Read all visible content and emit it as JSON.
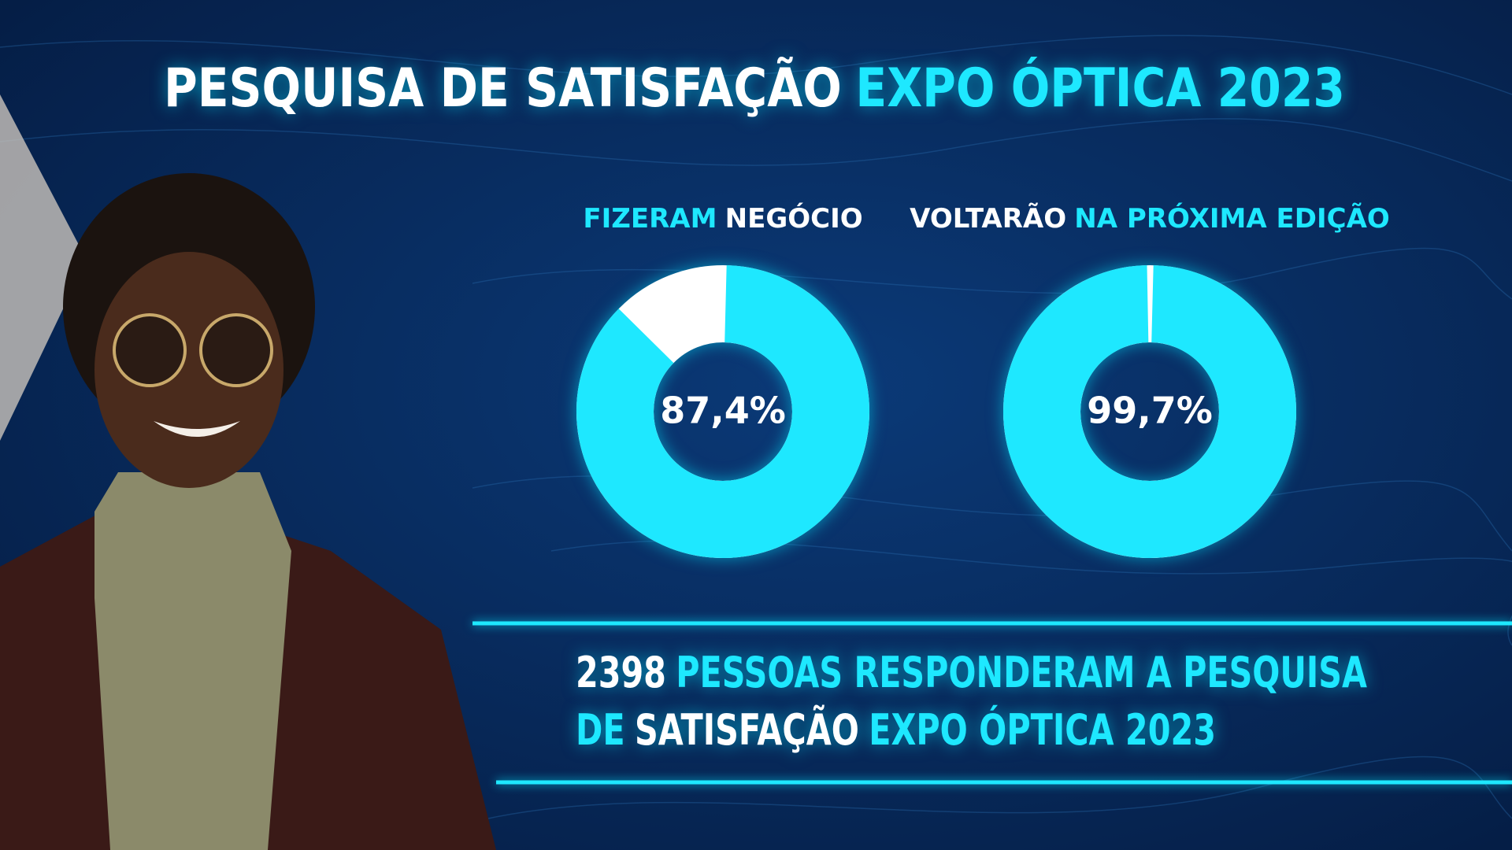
{
  "header": {
    "title": [
      {
        "text": "PESQUISA DE SATISFAÇÃO",
        "color": "#ffffff"
      },
      {
        "text": "EXPO ÓPTICA 2023",
        "color": "#1ee8ff"
      }
    ]
  },
  "chart_data": [
    {
      "type": "donut",
      "title": [
        {
          "text": "FIZERAM",
          "color": "#1ee8ff"
        },
        {
          "text": "NEGÓCIO",
          "color": "#ffffff"
        }
      ],
      "values": [
        87.4
      ],
      "value_labels": [
        "87,4%"
      ],
      "color": "#1ee8ff",
      "track_color": "#ffffff"
    },
    {
      "type": "donut",
      "title": [
        {
          "text": "VOLTARÃO",
          "color": "#ffffff"
        },
        {
          "text": "NA PRÓXIMA EDIÇÃO",
          "color": "#1ee8ff"
        }
      ],
      "values": [
        99.7
      ],
      "value_labels": [
        "99,7%"
      ],
      "color": "#1ee8ff",
      "track_color": "#ffffff"
    }
  ],
  "footer": {
    "lines": [
      [
        {
          "text": "2398",
          "color": "#ffffff"
        },
        {
          "text": "PESSOAS RESPONDERAM A PESQUISA",
          "color": "#1ee8ff"
        }
      ],
      [
        {
          "text": "DE",
          "color": "#1ee8ff"
        },
        {
          "text": "SATISFAÇÃO",
          "color": "#ffffff"
        },
        {
          "text": "EXPO ÓPTICA 2023",
          "color": "#1ee8ff"
        }
      ]
    ]
  }
}
